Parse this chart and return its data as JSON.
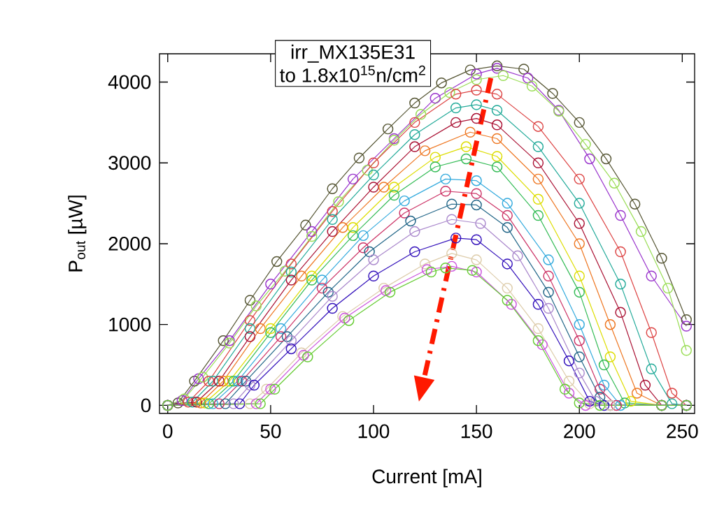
{
  "chart_data": {
    "type": "line",
    "xlabel": "Current [mA]",
    "ylabel": "P$_{out}$ [µW]",
    "annotations": [
      "irr_MX135E31",
      "to 1.8x10$^{15}$n/cm$^{2}$"
    ],
    "xlim": [
      -4,
      256
    ],
    "ylim": [
      -100,
      4350
    ],
    "xticks": [
      0,
      50,
      100,
      150,
      200,
      250
    ],
    "yticks": [
      0,
      1000,
      2000,
      3000,
      4000
    ],
    "marker": "circle",
    "line_style": "solid",
    "series": [
      {
        "color": "#555533",
        "x": [
          0,
          5,
          13,
          27,
          40,
          53,
          67,
          80,
          93,
          107,
          120,
          133,
          147,
          160,
          173,
          187,
          200,
          213,
          227,
          240,
          252
        ],
        "values": [
          0,
          30,
          300,
          800,
          1300,
          1780,
          2230,
          2680,
          3060,
          3420,
          3740,
          3990,
          4150,
          4200,
          4160,
          3860,
          3500,
          3050,
          2490,
          1820,
          1060
        ]
      },
      {
        "color": "#9933cc",
        "x": [
          0,
          7,
          15,
          30,
          50,
          70,
          90,
          110,
          130,
          150,
          160,
          175,
          190,
          205,
          220,
          235,
          252
        ],
        "values": [
          0,
          60,
          330,
          800,
          1500,
          2150,
          2800,
          3300,
          3800,
          4100,
          4170,
          4050,
          3650,
          3050,
          2350,
          1600,
          980
        ]
      },
      {
        "color": "#99dd55",
        "x": [
          0,
          8,
          17,
          30,
          43,
          57,
          70,
          83,
          97,
          110,
          123,
          137,
          150,
          163,
          177,
          190,
          203,
          217,
          230,
          243,
          252
        ],
        "values": [
          0,
          80,
          350,
          770,
          1230,
          1660,
          2090,
          2520,
          2910,
          3280,
          3600,
          3870,
          4030,
          4080,
          3950,
          3640,
          3230,
          2750,
          2150,
          1450,
          680
        ]
      },
      {
        "color": "#dd4444",
        "x": [
          0,
          10,
          20,
          40,
          60,
          80,
          100,
          120,
          140,
          150,
          160,
          180,
          200,
          220,
          235,
          245,
          252
        ],
        "values": [
          0,
          40,
          300,
          1050,
          1750,
          2400,
          3000,
          3500,
          3850,
          3900,
          3850,
          3450,
          2800,
          1900,
          900,
          150,
          0
        ]
      },
      {
        "color": "#22aa99",
        "x": [
          0,
          12,
          22,
          40,
          60,
          80,
          100,
          120,
          140,
          150,
          160,
          180,
          200,
          220,
          235,
          245,
          252
        ],
        "values": [
          0,
          40,
          300,
          950,
          1650,
          2300,
          2850,
          3350,
          3680,
          3720,
          3650,
          3200,
          2500,
          1500,
          450,
          20,
          0
        ]
      },
      {
        "color": "#aa1133",
        "x": [
          0,
          14,
          25,
          40,
          60,
          80,
          100,
          120,
          140,
          150,
          160,
          180,
          200,
          220,
          232,
          240,
          252
        ],
        "values": [
          0,
          40,
          300,
          850,
          1550,
          2150,
          2700,
          3200,
          3500,
          3550,
          3470,
          3000,
          2250,
          1150,
          250,
          0,
          0
        ]
      },
      {
        "color": "#ee7722",
        "x": [
          0,
          16,
          27,
          45,
          65,
          85,
          105,
          125,
          147,
          160,
          180,
          200,
          215,
          228,
          240,
          252
        ],
        "values": [
          0,
          30,
          300,
          950,
          1600,
          2200,
          2700,
          3150,
          3380,
          3300,
          2800,
          2000,
          1000,
          150,
          0,
          0
        ]
      },
      {
        "color": "#dddd00",
        "x": [
          0,
          18,
          30,
          50,
          70,
          90,
          110,
          130,
          145,
          160,
          180,
          200,
          215,
          225,
          240,
          252
        ],
        "values": [
          0,
          30,
          300,
          950,
          1600,
          2200,
          2700,
          3070,
          3200,
          3080,
          2550,
          1600,
          600,
          50,
          0,
          0
        ]
      },
      {
        "color": "#33bb55",
        "x": [
          0,
          20,
          32,
          50,
          70,
          90,
          110,
          130,
          145,
          160,
          180,
          200,
          212,
          222,
          240,
          252
        ],
        "values": [
          0,
          20,
          300,
          900,
          1550,
          2100,
          2600,
          2950,
          3050,
          2950,
          2350,
          1400,
          500,
          30,
          0,
          0
        ]
      },
      {
        "color": "#33aadd",
        "x": [
          0,
          22,
          34,
          55,
          75,
          95,
          115,
          135,
          150,
          165,
          185,
          200,
          212,
          220,
          240,
          252
        ],
        "values": [
          0,
          20,
          300,
          950,
          1550,
          2100,
          2530,
          2800,
          2780,
          2500,
          1800,
          1000,
          250,
          0,
          0,
          0
        ]
      },
      {
        "color": "#cc3366",
        "x": [
          0,
          25,
          36,
          55,
          75,
          95,
          115,
          135,
          150,
          165,
          185,
          200,
          210,
          218,
          240,
          252
        ],
        "values": [
          0,
          20,
          300,
          850,
          1450,
          1950,
          2380,
          2650,
          2620,
          2350,
          1600,
          800,
          200,
          0,
          0,
          0
        ]
      },
      {
        "color": "#226688",
        "x": [
          0,
          28,
          38,
          58,
          78,
          98,
          118,
          138,
          150,
          165,
          185,
          200,
          210,
          215,
          240,
          252
        ],
        "values": [
          0,
          20,
          300,
          850,
          1400,
          1900,
          2280,
          2490,
          2480,
          2200,
          1400,
          600,
          100,
          0,
          0,
          0
        ]
      },
      {
        "color": "#aa88cc",
        "x": [
          0,
          32,
          40,
          60,
          80,
          100,
          120,
          138,
          152,
          170,
          185,
          200,
          208,
          215,
          240,
          252
        ],
        "values": [
          0,
          20,
          250,
          800,
          1350,
          1800,
          2150,
          2300,
          2250,
          1850,
          1200,
          400,
          50,
          0,
          0,
          0
        ]
      },
      {
        "color": "#3311bb",
        "x": [
          0,
          35,
          42,
          60,
          80,
          100,
          120,
          140,
          150,
          165,
          180,
          195,
          205,
          212,
          240,
          252
        ],
        "values": [
          0,
          20,
          250,
          700,
          1200,
          1600,
          1900,
          2070,
          2050,
          1750,
          1250,
          550,
          50,
          0,
          0,
          0
        ]
      },
      {
        "color": "#ddccaa",
        "x": [
          0,
          40,
          48,
          65,
          85,
          105,
          125,
          138,
          150,
          165,
          180,
          195,
          205,
          215,
          240,
          252
        ],
        "values": [
          0,
          20,
          200,
          650,
          1100,
          1450,
          1750,
          1880,
          1800,
          1450,
          950,
          300,
          20,
          0,
          0,
          0
        ]
      },
      {
        "color": "#cc55dd",
        "x": [
          0,
          43,
          50,
          66,
          86,
          106,
          126,
          138,
          150,
          167,
          182,
          195,
          203,
          240,
          252
        ],
        "values": [
          0,
          20,
          200,
          620,
          1080,
          1420,
          1680,
          1720,
          1650,
          1250,
          750,
          150,
          0,
          0,
          0
        ]
      },
      {
        "color": "#66cc33",
        "x": [
          0,
          45,
          52,
          68,
          88,
          108,
          128,
          135,
          148,
          165,
          180,
          193,
          200,
          210,
          240,
          252
        ],
        "values": [
          0,
          20,
          200,
          600,
          1050,
          1400,
          1650,
          1700,
          1670,
          1300,
          800,
          200,
          30,
          0,
          0,
          0
        ]
      }
    ]
  }
}
